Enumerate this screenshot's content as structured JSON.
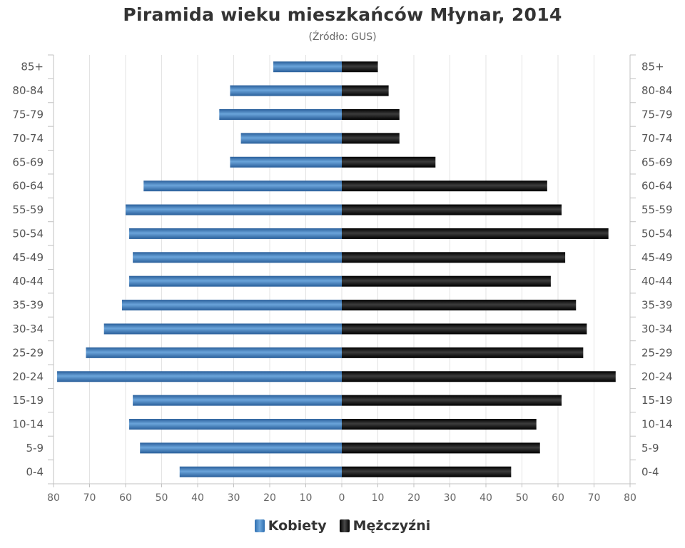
{
  "title": "Piramida wieku mieszkańców Młynar, 2014",
  "subtitle": "(Źródło: GUS)",
  "chart_data": {
    "type": "bar",
    "orientation": "horizontal-population-pyramid",
    "categories": [
      "85+",
      "80-84",
      "75-79",
      "70-74",
      "65-69",
      "60-64",
      "55-59",
      "50-54",
      "45-49",
      "40-44",
      "35-39",
      "30-34",
      "25-29",
      "20-24",
      "15-19",
      "10-14",
      "5-9",
      "0-4"
    ],
    "series": [
      {
        "name": "Kobiety",
        "color": "#3a7bbf",
        "values": [
          19,
          31,
          34,
          28,
          31,
          55,
          60,
          59,
          58,
          59,
          61,
          66,
          71,
          79,
          58,
          59,
          56,
          45
        ]
      },
      {
        "name": "Mężczyźni",
        "color": "#111111",
        "values": [
          10,
          13,
          16,
          16,
          26,
          57,
          61,
          74,
          62,
          58,
          65,
          68,
          67,
          76,
          61,
          54,
          55,
          47
        ]
      }
    ],
    "x_ticks": [
      "80",
      "70",
      "60",
      "50",
      "40",
      "30",
      "20",
      "10",
      "0",
      "10",
      "20",
      "30",
      "40",
      "50",
      "60",
      "70",
      "80"
    ],
    "xlim": [
      -80,
      80
    ],
    "grid": true,
    "legend_position": "bottom-center"
  }
}
